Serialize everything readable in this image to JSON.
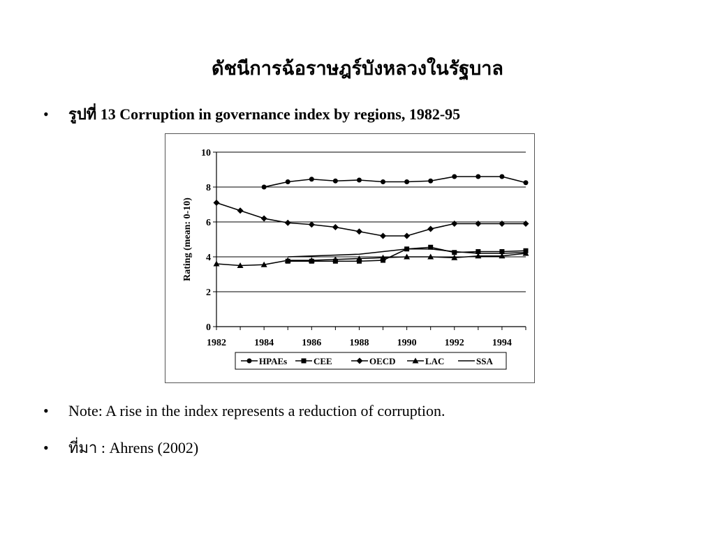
{
  "slide": {
    "title": "ดัชนีการฉ้อราษฎร์บังหลวงในรัฐบาล",
    "bullet_char": "•",
    "caption": "รูปที่ 13 Corruption in governance index by regions, 1982-95",
    "note": "Note: A rise in the index represents a reduction of corruption.",
    "source": "ที่มา : Ahrens (2002)"
  },
  "chart_data": {
    "type": "line",
    "ylabel": "Rating (mean: 0-10)",
    "xlabel": "",
    "ylim": [
      0,
      10
    ],
    "yticks": [
      0,
      2,
      4,
      6,
      8,
      10
    ],
    "xlim": [
      1982,
      1995
    ],
    "xtick_labels": [
      "1982",
      "1984",
      "1986",
      "1988",
      "1990",
      "1992",
      "1994"
    ],
    "grid": "horizontal",
    "legend_position": "bottom",
    "series": [
      {
        "name": "HPAEs",
        "marker": "circle",
        "x": [
          1984,
          1985,
          1986,
          1987,
          1988,
          1989,
          1990,
          1991,
          1992,
          1993,
          1994,
          1995
        ],
        "values": [
          8.0,
          8.3,
          8.45,
          8.35,
          8.4,
          8.3,
          8.3,
          8.35,
          8.6,
          8.6,
          8.6,
          8.25
        ]
      },
      {
        "name": "CEE",
        "marker": "square",
        "x": [
          1985,
          1986,
          1987,
          1988,
          1989,
          1990,
          1991,
          1992,
          1993,
          1994,
          1995
        ],
        "values": [
          3.75,
          3.75,
          3.75,
          3.75,
          3.8,
          4.45,
          4.55,
          4.25,
          4.3,
          4.3,
          4.35
        ]
      },
      {
        "name": "OECD",
        "marker": "diamond",
        "x": [
          1982,
          1983,
          1984,
          1985,
          1986,
          1987,
          1988,
          1989,
          1990,
          1991,
          1992,
          1993,
          1994,
          1995
        ],
        "values": [
          7.1,
          6.65,
          6.2,
          5.95,
          5.85,
          5.7,
          5.45,
          5.2,
          5.2,
          5.6,
          5.9,
          5.9,
          5.9,
          5.9
        ]
      },
      {
        "name": "LAC",
        "marker": "triangle",
        "x": [
          1982,
          1983,
          1984,
          1985,
          1986,
          1987,
          1988,
          1989,
          1990,
          1991,
          1992,
          1993,
          1994,
          1995
        ],
        "values": [
          3.6,
          3.5,
          3.55,
          3.8,
          3.8,
          3.85,
          3.9,
          3.95,
          4.0,
          4.0,
          3.95,
          4.05,
          4.05,
          4.2
        ]
      },
      {
        "name": "SSA",
        "marker": "none",
        "x": [
          1985,
          1986,
          1987,
          1988,
          1989,
          1990,
          1991,
          1992,
          1993,
          1994,
          1995
        ],
        "values": [
          4.0,
          4.05,
          4.1,
          4.15,
          4.3,
          4.45,
          4.45,
          4.3,
          4.2,
          4.2,
          4.25
        ]
      }
    ]
  },
  "colors": {
    "background": "#ffffff",
    "ink": "#000000",
    "frame": "#555555"
  }
}
